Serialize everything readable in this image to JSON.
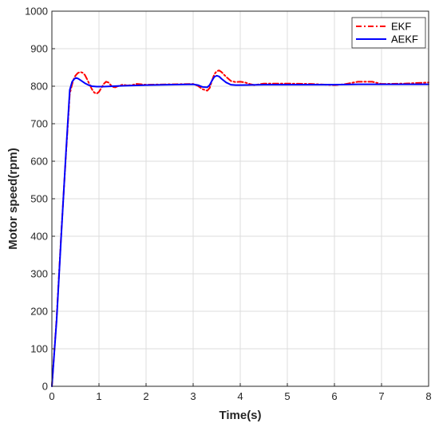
{
  "chart_data": {
    "type": "line",
    "xlabel": "Time(s)",
    "ylabel": "Motor speed(rpm)",
    "xlim": [
      0,
      8
    ],
    "ylim": [
      0,
      1000
    ],
    "x_ticks": [
      "0",
      "1",
      "2",
      "3",
      "4",
      "5",
      "6",
      "7",
      "8"
    ],
    "y_ticks": [
      "0",
      "100",
      "200",
      "300",
      "400",
      "500",
      "600",
      "700",
      "800",
      "900",
      "1000"
    ],
    "grid": true,
    "legend_position": "top-right",
    "series": [
      {
        "name": "EKF",
        "color": "#ff0000",
        "style": "dash-dot",
        "points": [
          [
            0,
            0
          ],
          [
            0.1,
            180
          ],
          [
            0.2,
            410
          ],
          [
            0.3,
            620
          ],
          [
            0.38,
            780
          ],
          [
            0.45,
            815
          ],
          [
            0.5,
            828
          ],
          [
            0.55,
            835
          ],
          [
            0.6,
            838
          ],
          [
            0.65,
            836
          ],
          [
            0.7,
            830
          ],
          [
            0.75,
            818
          ],
          [
            0.8,
            805
          ],
          [
            0.85,
            792
          ],
          [
            0.9,
            783
          ],
          [
            0.95,
            780
          ],
          [
            1.0,
            785
          ],
          [
            1.05,
            795
          ],
          [
            1.1,
            806
          ],
          [
            1.15,
            812
          ],
          [
            1.2,
            810
          ],
          [
            1.25,
            803
          ],
          [
            1.3,
            798
          ],
          [
            1.35,
            797
          ],
          [
            1.4,
            800
          ],
          [
            1.5,
            804
          ],
          [
            1.6,
            802
          ],
          [
            1.7,
            803
          ],
          [
            1.8,
            806
          ],
          [
            1.9,
            805
          ],
          [
            2.0,
            804
          ],
          [
            2.5,
            805
          ],
          [
            3.0,
            806
          ],
          [
            3.1,
            801
          ],
          [
            3.2,
            792
          ],
          [
            3.3,
            788
          ],
          [
            3.35,
            795
          ],
          [
            3.4,
            815
          ],
          [
            3.45,
            832
          ],
          [
            3.5,
            840
          ],
          [
            3.55,
            842
          ],
          [
            3.6,
            838
          ],
          [
            3.7,
            825
          ],
          [
            3.8,
            814
          ],
          [
            3.9,
            811
          ],
          [
            4.0,
            812
          ],
          [
            4.1,
            810
          ],
          [
            4.2,
            806
          ],
          [
            4.3,
            803
          ],
          [
            4.4,
            805
          ],
          [
            4.5,
            807
          ],
          [
            5.0,
            807
          ],
          [
            5.5,
            806
          ],
          [
            6.0,
            803
          ],
          [
            6.2,
            805
          ],
          [
            6.5,
            812
          ],
          [
            6.8,
            812
          ],
          [
            7.0,
            806
          ],
          [
            7.5,
            807
          ],
          [
            8.0,
            810
          ]
        ]
      },
      {
        "name": "AEKF",
        "color": "#0000ff",
        "style": "solid",
        "points": [
          [
            0,
            0
          ],
          [
            0.1,
            175
          ],
          [
            0.2,
            405
          ],
          [
            0.3,
            625
          ],
          [
            0.38,
            790
          ],
          [
            0.43,
            812
          ],
          [
            0.48,
            820
          ],
          [
            0.52,
            822
          ],
          [
            0.56,
            820
          ],
          [
            0.62,
            815
          ],
          [
            0.7,
            808
          ],
          [
            0.78,
            803
          ],
          [
            0.85,
            800
          ],
          [
            0.95,
            799
          ],
          [
            1.1,
            799
          ],
          [
            1.3,
            800
          ],
          [
            1.5,
            801
          ],
          [
            1.8,
            802
          ],
          [
            2.0,
            803
          ],
          [
            2.5,
            804
          ],
          [
            3.0,
            805
          ],
          [
            3.1,
            803
          ],
          [
            3.2,
            798
          ],
          [
            3.3,
            797
          ],
          [
            3.35,
            803
          ],
          [
            3.4,
            815
          ],
          [
            3.45,
            825
          ],
          [
            3.5,
            828
          ],
          [
            3.55,
            826
          ],
          [
            3.6,
            820
          ],
          [
            3.7,
            810
          ],
          [
            3.8,
            804
          ],
          [
            3.9,
            803
          ],
          [
            4.0,
            803
          ],
          [
            4.5,
            804
          ],
          [
            5.0,
            804
          ],
          [
            5.5,
            804
          ],
          [
            6.0,
            804
          ],
          [
            6.5,
            805
          ],
          [
            7.0,
            805
          ],
          [
            7.5,
            805
          ],
          [
            8.0,
            805
          ]
        ]
      }
    ]
  }
}
